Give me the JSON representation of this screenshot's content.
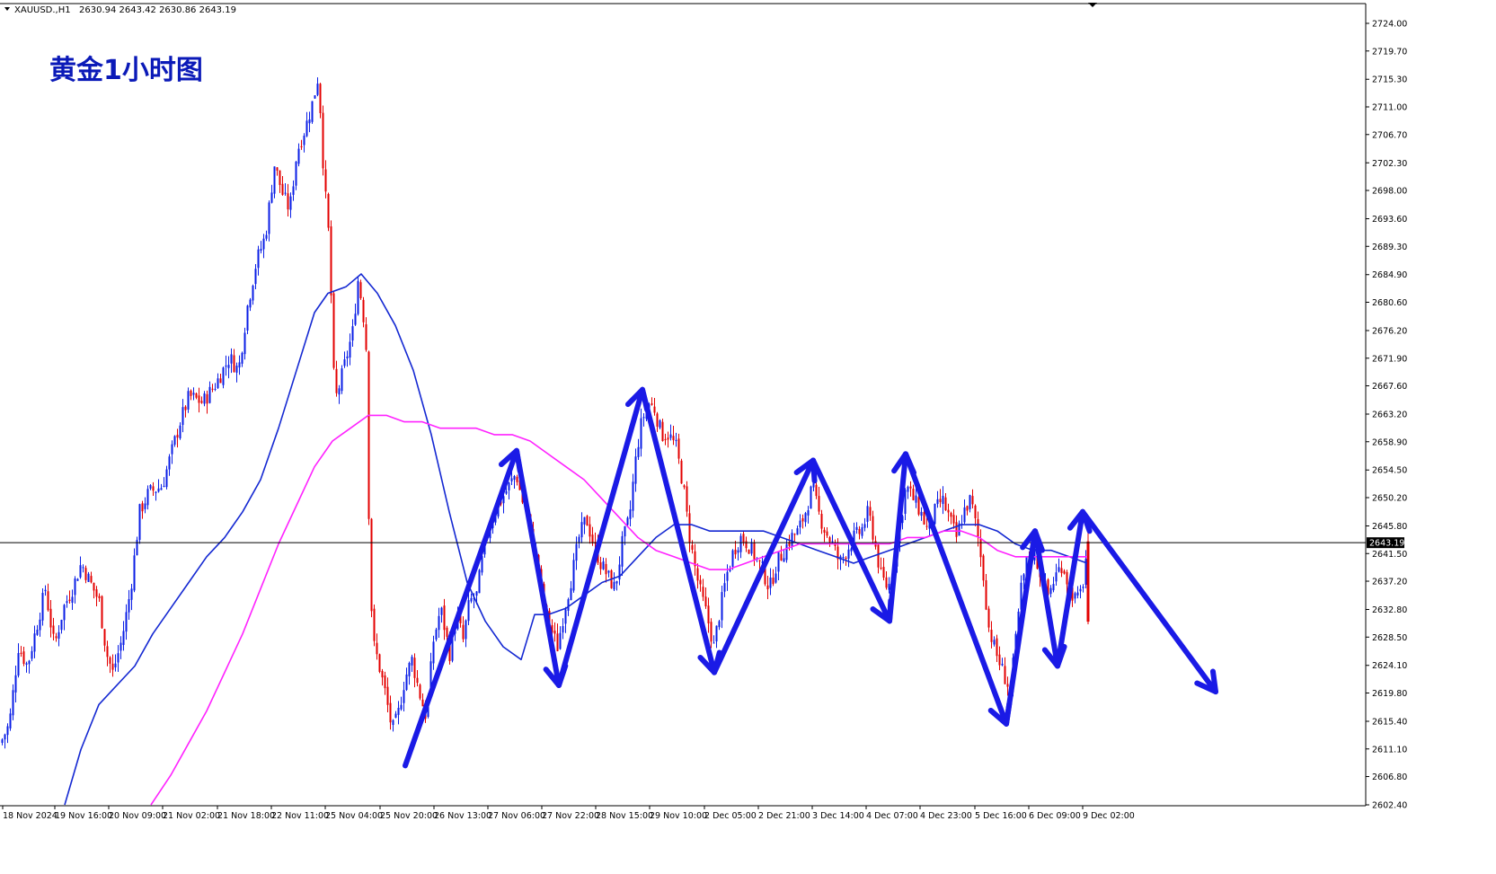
{
  "header": {
    "symbol": "XAUUSD.,H1",
    "ohlc": "2630.94 2643.42 2630.86 2643.19"
  },
  "annotation": "黄金1小时图",
  "colors": {
    "bull": "#0a1ee6",
    "bear": "#e30000",
    "ma_fast": "#1428d2",
    "ma_slow": "#ff22ff",
    "arrows": "#1a1ae6",
    "price_line": "#000000"
  },
  "chart_data": {
    "type": "candlestick",
    "ylim": [
      2602.4,
      2726.0
    ],
    "y_ticks": [
      "2724.00",
      "2719.70",
      "2715.30",
      "2711.00",
      "2706.70",
      "2702.30",
      "2698.00",
      "2693.60",
      "2689.30",
      "2684.90",
      "2680.60",
      "2676.20",
      "2671.90",
      "2667.60",
      "2663.20",
      "2658.90",
      "2654.50",
      "2650.20",
      "2645.80",
      "2641.50",
      "2637.20",
      "2632.80",
      "2628.50",
      "2624.10",
      "2619.80",
      "2615.40",
      "2611.10",
      "2606.80",
      "2602.40"
    ],
    "current_price": "2643.19",
    "x_ticks": [
      "18 Nov 2024",
      "19 Nov 16:00",
      "20 Nov 09:00",
      "21 Nov 02:00",
      "21 Nov 18:00",
      "22 Nov 11:00",
      "25 Nov 04:00",
      "25 Nov 20:00",
      "26 Nov 13:00",
      "27 Nov 06:00",
      "27 Nov 22:00",
      "28 Nov 15:00",
      "29 Nov 10:00",
      "2 Dec 05:00",
      "2 Dec 21:00",
      "3 Dec 14:00",
      "4 Dec 07:00",
      "4 Dec 23:00",
      "5 Dec 16:00",
      "6 Dec 09:00",
      "9 Dec 02:00"
    ],
    "close_path": [
      [
        0,
        2612
      ],
      [
        10,
        2615
      ],
      [
        20,
        2627
      ],
      [
        30,
        2624
      ],
      [
        40,
        2630
      ],
      [
        50,
        2636
      ],
      [
        60,
        2627
      ],
      [
        70,
        2633
      ],
      [
        80,
        2636
      ],
      [
        90,
        2640
      ],
      [
        100,
        2637
      ],
      [
        110,
        2634
      ],
      [
        118,
        2626
      ],
      [
        125,
        2623
      ],
      [
        135,
        2628
      ],
      [
        145,
        2636
      ],
      [
        155,
        2648
      ],
      [
        165,
        2651
      ],
      [
        180,
        2652
      ],
      [
        190,
        2657
      ],
      [
        200,
        2662
      ],
      [
        210,
        2666
      ],
      [
        225,
        2665
      ],
      [
        240,
        2668
      ],
      [
        255,
        2672
      ],
      [
        265,
        2670
      ],
      [
        275,
        2680
      ],
      [
        285,
        2687
      ],
      [
        295,
        2691
      ],
      [
        305,
        2702
      ],
      [
        315,
        2697
      ],
      [
        322,
        2695
      ],
      [
        330,
        2704
      ],
      [
        340,
        2708
      ],
      [
        348,
        2712
      ],
      [
        354,
        2716
      ],
      [
        360,
        2700
      ],
      [
        366,
        2690
      ],
      [
        372,
        2665
      ],
      [
        378,
        2668
      ],
      [
        385,
        2672
      ],
      [
        392,
        2676
      ],
      [
        398,
        2684
      ],
      [
        403,
        2680
      ],
      [
        408,
        2672
      ],
      [
        410,
        2648
      ],
      [
        414,
        2628
      ],
      [
        420,
        2625
      ],
      [
        428,
        2620
      ],
      [
        436,
        2614
      ],
      [
        442,
        2616
      ],
      [
        450,
        2622
      ],
      [
        458,
        2625
      ],
      [
        466,
        2620
      ],
      [
        474,
        2616
      ],
      [
        482,
        2628
      ],
      [
        490,
        2633
      ],
      [
        500,
        2626
      ],
      [
        508,
        2632
      ],
      [
        515,
        2628
      ],
      [
        522,
        2634
      ],
      [
        530,
        2635
      ],
      [
        540,
        2644
      ],
      [
        550,
        2648
      ],
      [
        558,
        2650
      ],
      [
        566,
        2652
      ],
      [
        574,
        2654
      ],
      [
        580,
        2650
      ],
      [
        586,
        2648
      ],
      [
        592,
        2643
      ],
      [
        598,
        2640
      ],
      [
        604,
        2634
      ],
      [
        612,
        2630
      ],
      [
        620,
        2627
      ],
      [
        628,
        2633
      ],
      [
        636,
        2638
      ],
      [
        644,
        2644
      ],
      [
        652,
        2647
      ],
      [
        660,
        2643
      ],
      [
        668,
        2640
      ],
      [
        676,
        2638
      ],
      [
        684,
        2636
      ],
      [
        692,
        2643
      ],
      [
        700,
        2647
      ],
      [
        706,
        2655
      ],
      [
        712,
        2661
      ],
      [
        720,
        2665
      ],
      [
        728,
        2664
      ],
      [
        736,
        2660
      ],
      [
        744,
        2660
      ],
      [
        752,
        2658
      ],
      [
        760,
        2652
      ],
      [
        766,
        2645
      ],
      [
        772,
        2640
      ],
      [
        778,
        2636
      ],
      [
        786,
        2632
      ],
      [
        794,
        2627
      ],
      [
        800,
        2632
      ],
      [
        808,
        2638
      ],
      [
        816,
        2642
      ],
      [
        824,
        2644
      ],
      [
        832,
        2643
      ],
      [
        840,
        2641
      ],
      [
        848,
        2639
      ],
      [
        856,
        2636
      ],
      [
        864,
        2640
      ],
      [
        872,
        2642
      ],
      [
        880,
        2644
      ],
      [
        888,
        2645
      ],
      [
        896,
        2648
      ],
      [
        904,
        2652
      ],
      [
        910,
        2648
      ],
      [
        918,
        2645
      ],
      [
        926,
        2643
      ],
      [
        934,
        2640
      ],
      [
        942,
        2642
      ],
      [
        950,
        2644
      ],
      [
        958,
        2645
      ],
      [
        966,
        2648
      ],
      [
        972,
        2644
      ],
      [
        980,
        2638
      ],
      [
        988,
        2636
      ],
      [
        994,
        2640
      ],
      [
        1000,
        2645
      ],
      [
        1008,
        2652
      ],
      [
        1016,
        2650
      ],
      [
        1024,
        2648
      ],
      [
        1032,
        2645
      ],
      [
        1040,
        2648
      ],
      [
        1048,
        2650
      ],
      [
        1056,
        2647
      ],
      [
        1064,
        2644
      ],
      [
        1072,
        2648
      ],
      [
        1080,
        2650
      ],
      [
        1088,
        2644
      ],
      [
        1094,
        2638
      ],
      [
        1100,
        2630
      ],
      [
        1108,
        2626
      ],
      [
        1116,
        2623
      ],
      [
        1124,
        2620
      ],
      [
        1130,
        2628
      ],
      [
        1136,
        2636
      ],
      [
        1142,
        2640
      ],
      [
        1150,
        2642
      ],
      [
        1158,
        2638
      ],
      [
        1166,
        2635
      ],
      [
        1174,
        2638
      ],
      [
        1182,
        2640
      ],
      [
        1190,
        2636
      ],
      [
        1198,
        2634
      ],
      [
        1204,
        2636
      ],
      [
        1210,
        2643
      ]
    ],
    "ma_fast": [
      [
        72,
        2602.4
      ],
      [
        90,
        2611
      ],
      [
        110,
        2618
      ],
      [
        130,
        2621
      ],
      [
        150,
        2624
      ],
      [
        170,
        2629
      ],
      [
        190,
        2633
      ],
      [
        210,
        2637
      ],
      [
        230,
        2641
      ],
      [
        250,
        2644
      ],
      [
        270,
        2648
      ],
      [
        290,
        2653
      ],
      [
        310,
        2661
      ],
      [
        330,
        2670
      ],
      [
        350,
        2679
      ],
      [
        365,
        2682
      ],
      [
        385,
        2683
      ],
      [
        402,
        2685
      ],
      [
        420,
        2682
      ],
      [
        440,
        2677
      ],
      [
        460,
        2670
      ],
      [
        480,
        2660
      ],
      [
        500,
        2648
      ],
      [
        520,
        2637
      ],
      [
        540,
        2631
      ],
      [
        560,
        2627
      ],
      [
        580,
        2625
      ],
      [
        595,
        2632
      ],
      [
        610,
        2632
      ],
      [
        630,
        2633
      ],
      [
        650,
        2635
      ],
      [
        670,
        2637
      ],
      [
        690,
        2638
      ],
      [
        710,
        2641
      ],
      [
        730,
        2644
      ],
      [
        750,
        2646
      ],
      [
        770,
        2646
      ],
      [
        790,
        2645
      ],
      [
        810,
        2645
      ],
      [
        830,
        2645
      ],
      [
        850,
        2645
      ],
      [
        870,
        2644
      ],
      [
        890,
        2643
      ],
      [
        910,
        2642
      ],
      [
        930,
        2641
      ],
      [
        950,
        2640
      ],
      [
        970,
        2641
      ],
      [
        990,
        2642
      ],
      [
        1010,
        2643
      ],
      [
        1030,
        2644
      ],
      [
        1050,
        2645
      ],
      [
        1070,
        2646
      ],
      [
        1090,
        2646
      ],
      [
        1110,
        2645
      ],
      [
        1130,
        2643
      ],
      [
        1150,
        2642
      ],
      [
        1170,
        2642
      ],
      [
        1190,
        2641
      ],
      [
        1210,
        2640
      ]
    ],
    "ma_slow": [
      [
        168,
        2602.4
      ],
      [
        190,
        2607
      ],
      [
        210,
        2612
      ],
      [
        230,
        2617
      ],
      [
        250,
        2623
      ],
      [
        270,
        2629
      ],
      [
        290,
        2636
      ],
      [
        310,
        2643
      ],
      [
        330,
        2649
      ],
      [
        350,
        2655
      ],
      [
        370,
        2659
      ],
      [
        390,
        2661
      ],
      [
        410,
        2663
      ],
      [
        430,
        2663
      ],
      [
        450,
        2662
      ],
      [
        470,
        2662
      ],
      [
        490,
        2661
      ],
      [
        510,
        2661
      ],
      [
        530,
        2661
      ],
      [
        550,
        2660
      ],
      [
        570,
        2660
      ],
      [
        590,
        2659
      ],
      [
        610,
        2657
      ],
      [
        630,
        2655
      ],
      [
        650,
        2653
      ],
      [
        670,
        2650
      ],
      [
        690,
        2647
      ],
      [
        710,
        2644
      ],
      [
        730,
        2642
      ],
      [
        750,
        2641
      ],
      [
        770,
        2640
      ],
      [
        790,
        2639
      ],
      [
        810,
        2639
      ],
      [
        830,
        2640
      ],
      [
        850,
        2641
      ],
      [
        870,
        2642
      ],
      [
        890,
        2643
      ],
      [
        910,
        2643
      ],
      [
        930,
        2643
      ],
      [
        950,
        2643
      ],
      [
        970,
        2643
      ],
      [
        990,
        2643
      ],
      [
        1010,
        2644
      ],
      [
        1030,
        2644
      ],
      [
        1050,
        2645
      ],
      [
        1070,
        2645
      ],
      [
        1090,
        2644
      ],
      [
        1110,
        2642
      ],
      [
        1130,
        2641
      ],
      [
        1150,
        2641
      ],
      [
        1170,
        2641
      ],
      [
        1190,
        2641
      ],
      [
        1210,
        2641
      ]
    ],
    "arrow_path": [
      [
        451,
        2608.5
      ],
      [
        575,
        2657.5
      ],
      [
        622,
        2621
      ],
      [
        715,
        2667
      ],
      [
        795,
        2623
      ],
      [
        905,
        2656
      ],
      [
        990,
        2631
      ],
      [
        1008,
        2657
      ],
      [
        1120,
        2615
      ],
      [
        1152,
        2645
      ],
      [
        1177,
        2624
      ],
      [
        1205,
        2648
      ],
      [
        1353,
        2620
      ]
    ]
  }
}
